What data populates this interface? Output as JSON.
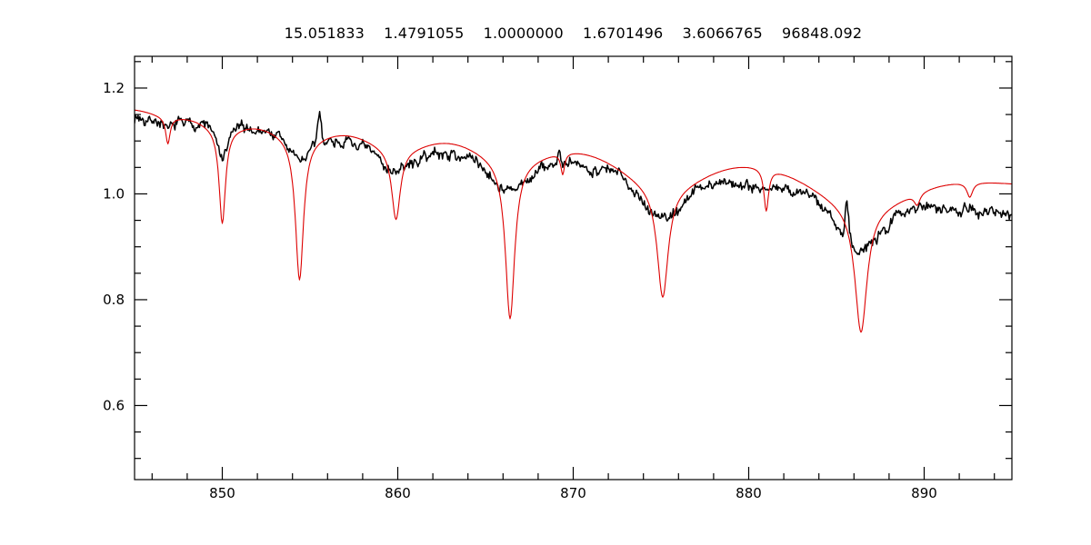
{
  "chart_data": {
    "type": "line",
    "title": "15.051833    1.4791055    1.0000000    1.6701496    3.6066765    96848.092",
    "title_values": [
      "15.051833",
      "1.4791055",
      "1.0000000",
      "1.6701496",
      "3.6066765",
      "96848.092"
    ],
    "xlabel": "",
    "ylabel": "",
    "xlim": [
      845,
      895
    ],
    "ylim": [
      0.46,
      1.26
    ],
    "xticks": [
      850,
      860,
      870,
      880,
      890
    ],
    "x_minor_step": 2,
    "yticks": [
      0.6,
      0.8,
      1.0,
      1.2
    ],
    "y_minor_step": 0.05,
    "grid": false,
    "legend": "none",
    "background": "#ffffff",
    "axis_color": "#000000",
    "series": [
      {
        "name": "observed spectrum",
        "description": "noisy black observed stellar spectrum with broad absorption dips",
        "color": "#000000",
        "line_width": 1.5,
        "profile": "gaussian",
        "continuum": {
          "x": [
            845,
            852,
            858,
            863,
            871,
            878,
            884,
            890,
            895
          ],
          "y": [
            1.145,
            1.12,
            1.095,
            1.075,
            1.05,
            1.025,
            1.0,
            0.98,
            0.962
          ]
        },
        "lines": [
          {
            "center": 846.9,
            "depth": 0.02,
            "width": 0.25
          },
          {
            "center": 850.0,
            "depth": 0.06,
            "width": 0.3
          },
          {
            "center": 854.4,
            "depth": 0.045,
            "width": 0.6
          },
          {
            "center": 859.9,
            "depth": 0.042,
            "width": 1.0
          },
          {
            "center": 866.4,
            "depth": 0.06,
            "width": 1.0
          },
          {
            "center": 875.1,
            "depth": 0.08,
            "width": 1.2
          },
          {
            "center": 886.4,
            "depth": 0.095,
            "width": 1.3
          }
        ],
        "spikes": [
          {
            "center": 855.55,
            "height": 0.05,
            "width": 0.1
          },
          {
            "center": 869.2,
            "height": 0.03,
            "width": 0.08
          },
          {
            "center": 885.6,
            "height": 0.075,
            "width": 0.1
          }
        ],
        "noise_amplitude": 0.0065,
        "noise_seed": 7
      },
      {
        "name": "model spectrum",
        "description": "smooth red synthetic fit with deep narrow absorption cores (Ca II triplet / Paschen lines)",
        "color": "#dd0000",
        "line_width": 1.1,
        "profile": "lorentzian",
        "continuum": {
          "x": [
            845,
            895
          ],
          "y": [
            1.16,
            1.02
          ]
        },
        "lines": [
          {
            "center": 846.9,
            "depth": 0.05,
            "width": 0.15,
            "wing_depth": 0.008,
            "wing_width": 0.8
          },
          {
            "center": 850.0,
            "depth": 0.18,
            "width": 0.22,
            "wing_depth": 0.02,
            "wing_width": 1.2
          },
          {
            "center": 854.4,
            "depth": 0.27,
            "width": 0.28,
            "wing_depth": 0.025,
            "wing_width": 1.5
          },
          {
            "center": 859.9,
            "depth": 0.135,
            "width": 0.3,
            "wing_depth": 0.03,
            "wing_width": 1.6
          },
          {
            "center": 866.4,
            "depth": 0.3,
            "width": 0.32,
            "wing_depth": 0.035,
            "wing_width": 1.8
          },
          {
            "center": 869.4,
            "depth": 0.04,
            "width": 0.13
          },
          {
            "center": 875.1,
            "depth": 0.21,
            "width": 0.38,
            "wing_depth": 0.06,
            "wing_width": 2.2
          },
          {
            "center": 881.0,
            "depth": 0.08,
            "width": 0.16
          },
          {
            "center": 886.4,
            "depth": 0.24,
            "width": 0.42,
            "wing_depth": 0.065,
            "wing_width": 2.6
          },
          {
            "center": 889.6,
            "depth": 0.022,
            "width": 0.2
          },
          {
            "center": 892.6,
            "depth": 0.028,
            "width": 0.2
          }
        ]
      }
    ]
  }
}
